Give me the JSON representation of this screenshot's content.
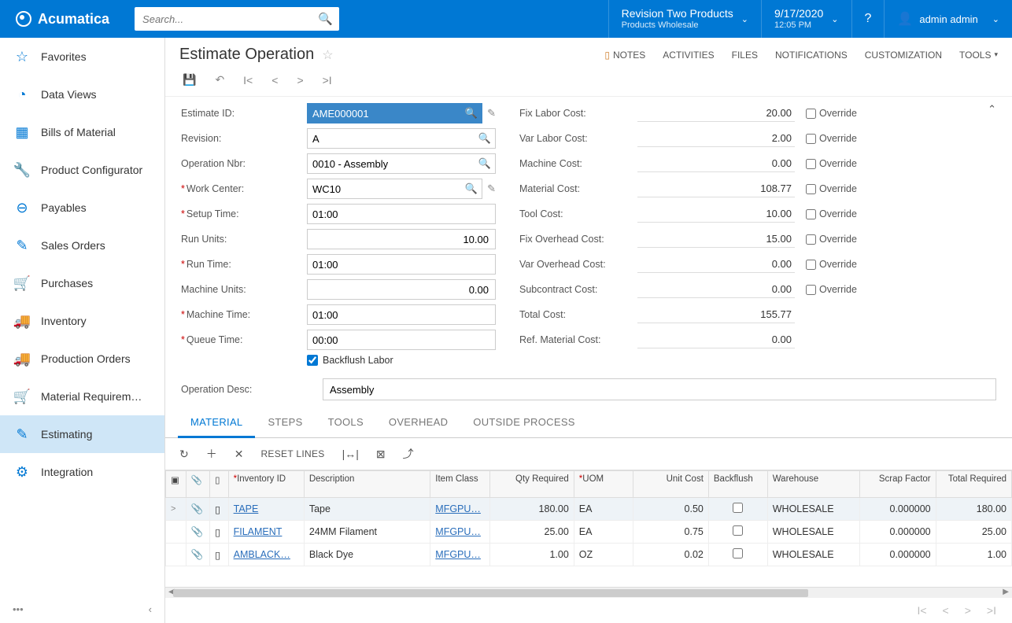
{
  "brand": "Acumatica",
  "search": {
    "placeholder": "Search..."
  },
  "tenant": {
    "name": "Revision Two Products",
    "sub": "Products Wholesale"
  },
  "datetime": {
    "date": "9/17/2020",
    "time": "12:05 PM"
  },
  "user": {
    "name": "admin admin"
  },
  "sidebar": {
    "items": [
      {
        "icon": "☆",
        "label": "Favorites"
      },
      {
        "icon": "◔",
        "label": "Data Views"
      },
      {
        "icon": "▦",
        "label": "Bills of Material"
      },
      {
        "icon": "🔧",
        "label": "Product Configurator"
      },
      {
        "icon": "⊖",
        "label": "Payables"
      },
      {
        "icon": "✎",
        "label": "Sales Orders"
      },
      {
        "icon": "🛒",
        "label": "Purchases"
      },
      {
        "icon": "🚚",
        "label": "Inventory"
      },
      {
        "icon": "🚚",
        "label": "Production Orders"
      },
      {
        "icon": "🛒",
        "label": "Material Requirem…"
      },
      {
        "icon": "✎",
        "label": "Estimating"
      },
      {
        "icon": "⚙",
        "label": "Integration"
      }
    ],
    "activeIndex": 10
  },
  "page": {
    "title": "Estimate Operation",
    "actions": {
      "notes": "NOTES",
      "activities": "ACTIVITIES",
      "files": "FILES",
      "notifications": "NOTIFICATIONS",
      "customization": "CUSTOMIZATION",
      "tools": "TOOLS"
    }
  },
  "form": {
    "left": {
      "estimateId": {
        "label": "Estimate ID:",
        "value": "AME000001"
      },
      "revision": {
        "label": "Revision:",
        "value": "A"
      },
      "operationNbr": {
        "label": "Operation Nbr:",
        "value": "0010 - Assembly"
      },
      "workCenter": {
        "label": "Work Center:",
        "value": "WC10",
        "required": true
      },
      "setupTime": {
        "label": "Setup Time:",
        "value": "01:00",
        "required": true
      },
      "runUnits": {
        "label": "Run Units:",
        "value": "10.00"
      },
      "runTime": {
        "label": "Run Time:",
        "value": "01:00",
        "required": true
      },
      "machineUnits": {
        "label": "Machine Units:",
        "value": "0.00"
      },
      "machineTime": {
        "label": "Machine Time:",
        "value": "01:00",
        "required": true
      },
      "queueTime": {
        "label": "Queue Time:",
        "value": "00:00",
        "required": true
      },
      "backflushLabor": {
        "label": "Backflush Labor",
        "checked": true
      },
      "operationDesc": {
        "label": "Operation Desc:",
        "value": "Assembly"
      }
    },
    "right": {
      "fixLabor": {
        "label": "Fix Labor Cost:",
        "value": "20.00",
        "override": "Override"
      },
      "varLabor": {
        "label": "Var Labor Cost:",
        "value": "2.00",
        "override": "Override"
      },
      "machine": {
        "label": "Machine Cost:",
        "value": "0.00",
        "override": "Override"
      },
      "material": {
        "label": "Material Cost:",
        "value": "108.77",
        "override": "Override"
      },
      "tool": {
        "label": "Tool Cost:",
        "value": "10.00",
        "override": "Override"
      },
      "fixOH": {
        "label": "Fix Overhead Cost:",
        "value": "15.00",
        "override": "Override"
      },
      "varOH": {
        "label": "Var Overhead Cost:",
        "value": "0.00",
        "override": "Override"
      },
      "subcontract": {
        "label": "Subcontract Cost:",
        "value": "0.00",
        "override": "Override"
      },
      "total": {
        "label": "Total Cost:",
        "value": "155.77"
      },
      "refMaterial": {
        "label": "Ref. Material Cost:",
        "value": "0.00"
      }
    }
  },
  "tabs": {
    "items": [
      "MATERIAL",
      "STEPS",
      "TOOLS",
      "OVERHEAD",
      "OUTSIDE PROCESS"
    ],
    "activeIndex": 0
  },
  "gridToolbar": {
    "reset": "RESET LINES"
  },
  "grid": {
    "columns": {
      "inventoryId": "Inventory ID",
      "description": "Description",
      "itemClass": "Item Class",
      "qtyRequired": "Qty Required",
      "uom": "UOM",
      "unitCost": "Unit Cost",
      "backflush": "Backflush",
      "warehouse": "Warehouse",
      "scrapFactor": "Scrap Factor",
      "totalRequired": "Total Required"
    },
    "rows": [
      {
        "inventoryId": "TAPE",
        "description": "Tape",
        "itemClass": "MFGPU…",
        "qtyRequired": "180.00",
        "uom": "EA",
        "unitCost": "0.50",
        "backflush": false,
        "warehouse": "WHOLESALE",
        "scrapFactor": "0.000000",
        "totalRequired": "180.00"
      },
      {
        "inventoryId": "FILAMENT",
        "description": "24MM Filament",
        "itemClass": "MFGPU…",
        "qtyRequired": "25.00",
        "uom": "EA",
        "unitCost": "0.75",
        "backflush": false,
        "warehouse": "WHOLESALE",
        "scrapFactor": "0.000000",
        "totalRequired": "25.00"
      },
      {
        "inventoryId": "AMBLACK…",
        "description": "Black Dye",
        "itemClass": "MFGPU…",
        "qtyRequired": "1.00",
        "uom": "OZ",
        "unitCost": "0.02",
        "backflush": false,
        "warehouse": "WHOLESALE",
        "scrapFactor": "0.000000",
        "totalRequired": "1.00"
      }
    ]
  },
  "colors": {
    "primary": "#0078d4",
    "activeNav": "#cfe6f7",
    "link": "#2a6ebb"
  }
}
